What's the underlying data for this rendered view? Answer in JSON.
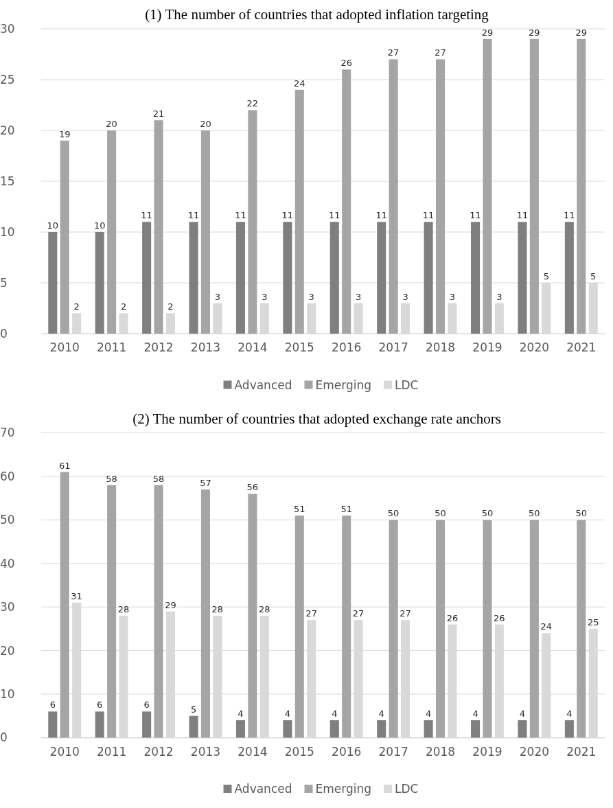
{
  "chart_data": [
    {
      "type": "bar",
      "title": "(1) The number of countries that adopted inflation targeting",
      "categories": [
        "2010",
        "2011",
        "2012",
        "2013",
        "2014",
        "2015",
        "2016",
        "2017",
        "2018",
        "2019",
        "2020",
        "2021"
      ],
      "series": [
        {
          "name": "Advanced",
          "color": "#7f7f7f",
          "values": [
            10,
            10,
            11,
            11,
            11,
            11,
            11,
            11,
            11,
            11,
            11,
            11
          ]
        },
        {
          "name": "Emerging",
          "color": "#a5a5a5",
          "values": [
            19,
            20,
            21,
            20,
            22,
            24,
            26,
            27,
            27,
            29,
            29,
            29
          ]
        },
        {
          "name": "LDC",
          "color": "#d9d9d9",
          "values": [
            2,
            2,
            2,
            3,
            3,
            3,
            3,
            3,
            3,
            3,
            5,
            5
          ]
        }
      ],
      "ylim": [
        0,
        30
      ],
      "yticks": [
        0,
        5,
        10,
        15,
        20,
        25,
        30
      ],
      "grid": "y",
      "legend": "bottom",
      "data_labels": true
    },
    {
      "type": "bar",
      "title": "(2) The number of countries that adopted exchange rate anchors",
      "categories": [
        "2010",
        "2011",
        "2012",
        "2013",
        "2014",
        "2015",
        "2016",
        "2017",
        "2018",
        "2019",
        "2020",
        "2021"
      ],
      "series": [
        {
          "name": "Advanced",
          "color": "#7f7f7f",
          "values": [
            6,
            6,
            6,
            5,
            4,
            4,
            4,
            4,
            4,
            4,
            4,
            4
          ]
        },
        {
          "name": "Emerging",
          "color": "#a5a5a5",
          "values": [
            61,
            58,
            58,
            57,
            56,
            51,
            51,
            50,
            50,
            50,
            50,
            50
          ]
        },
        {
          "name": "LDC",
          "color": "#d9d9d9",
          "values": [
            31,
            28,
            29,
            28,
            28,
            27,
            27,
            27,
            26,
            26,
            24,
            25
          ]
        }
      ],
      "ylim": [
        0,
        70
      ],
      "yticks": [
        0,
        10,
        20,
        30,
        40,
        50,
        60,
        70
      ],
      "grid": "y",
      "legend": "bottom",
      "data_labels": true
    }
  ]
}
